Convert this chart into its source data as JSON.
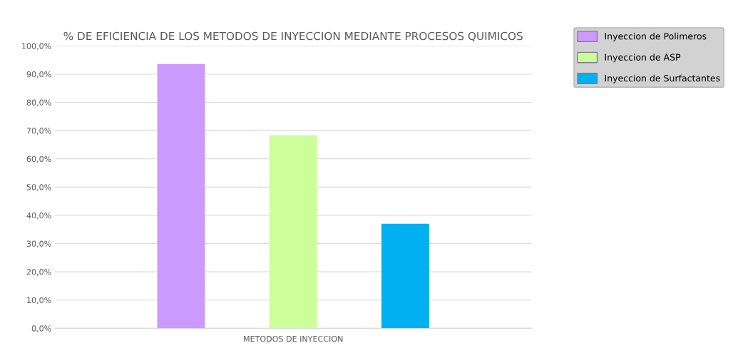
{
  "chart_data": {
    "type": "bar",
    "title": "% DE EFICIENCIA DE LOS METODOS DE INYECCION MEDIANTE PROCESOS QUIMICOS",
    "xlabel": "METODOS DE INYECCION",
    "categories": [
      null
    ],
    "series": [
      {
        "name": "Inyeccion de Polimeros",
        "color": "#cc99ff",
        "values": [
          93.6
        ]
      },
      {
        "name": "Inyeccion de ASP",
        "color": "#ccff99",
        "values": [
          68.4
        ]
      },
      {
        "name": "Inyeccion de Surfactantes",
        "color": "#00b0f0",
        "values": [
          37.0
        ]
      }
    ],
    "ylim": [
      0,
      100
    ],
    "yticks": [
      {
        "value": 0,
        "label": "0,0%"
      },
      {
        "value": 10,
        "label": "10,0%"
      },
      {
        "value": 20,
        "label": "20,0%"
      },
      {
        "value": 30,
        "label": "30,0%"
      },
      {
        "value": 40,
        "label": "40,0%"
      },
      {
        "value": 50,
        "label": "50,0%"
      },
      {
        "value": 60,
        "label": "60,0%"
      },
      {
        "value": 70,
        "label": "70,0%"
      },
      {
        "value": 80,
        "label": "80,0%"
      },
      {
        "value": 90,
        "label": "90,0%"
      },
      {
        "value": 100,
        "label": "100,0%"
      }
    ],
    "grid": "y",
    "legend": "right"
  }
}
